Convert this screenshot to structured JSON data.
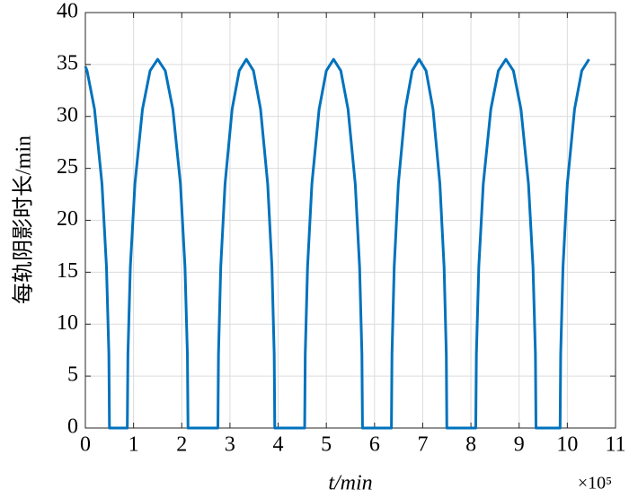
{
  "chart_data": {
    "type": "line",
    "y_label": "每轨阴影时长/min",
    "x_label": "t/min",
    "x_exponent_label": "×10⁵",
    "x": [
      0,
      0.035,
      0.19,
      0.345,
      0.438,
      0.488,
      0.5,
      0.87,
      0.883,
      0.933,
      1.028,
      1.185,
      1.343,
      1.5,
      1.658,
      1.815,
      1.973,
      2.067,
      2.117,
      2.13,
      2.75,
      2.762,
      2.809,
      2.898,
      3.045,
      3.193,
      3.34,
      3.488,
      3.635,
      3.783,
      3.871,
      3.918,
      3.93,
      4.55,
      4.562,
      4.61,
      4.7,
      4.85,
      5.0,
      5.15,
      5.3,
      5.45,
      5.6,
      5.69,
      5.738,
      5.75,
      6.35,
      6.362,
      6.408,
      6.494,
      6.638,
      6.781,
      6.925,
      7.069,
      7.213,
      7.356,
      7.443,
      7.489,
      7.5,
      8.1,
      8.113,
      8.163,
      8.256,
      8.413,
      8.569,
      8.725,
      8.881,
      9.038,
      9.194,
      9.288,
      9.338,
      9.35,
      9.85,
      9.862,
      9.91,
      10.0,
      10.15,
      10.3,
      10.45
    ],
    "series": [
      {
        "color": "#0072bd",
        "values": [
          34.8,
          34.4,
          30.7,
          23.5,
          15.5,
          7.1,
          0,
          0,
          7.1,
          15.5,
          23.5,
          30.7,
          34.4,
          35.5,
          34.4,
          30.7,
          23.5,
          15.5,
          7.1,
          0,
          0,
          7.1,
          15.5,
          23.5,
          30.7,
          34.4,
          35.5,
          34.4,
          30.7,
          23.5,
          15.5,
          7.1,
          0,
          0,
          7.1,
          15.5,
          23.5,
          30.7,
          34.4,
          35.5,
          34.4,
          30.7,
          23.5,
          15.5,
          7.1,
          0,
          0,
          7.1,
          15.5,
          23.5,
          30.7,
          34.4,
          35.5,
          34.4,
          30.7,
          23.5,
          15.5,
          7.1,
          0,
          0,
          7.1,
          15.5,
          23.5,
          30.7,
          34.4,
          35.5,
          34.4,
          30.7,
          23.5,
          15.5,
          7.1,
          0,
          0,
          7.1,
          15.5,
          23.5,
          30.7,
          34.4,
          35.5
        ]
      }
    ],
    "xlim": [
      0,
      11
    ],
    "xticks": [
      0,
      1,
      2,
      3,
      4,
      5,
      6,
      7,
      8,
      9,
      10,
      11
    ],
    "ylim": [
      0,
      40
    ],
    "yticks": [
      0,
      5,
      10,
      15,
      20,
      25,
      30,
      35,
      40
    ],
    "grid": true
  }
}
